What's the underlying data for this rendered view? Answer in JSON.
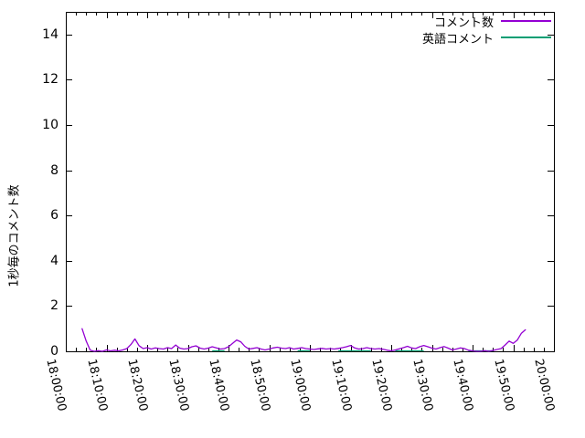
{
  "chart_data": {
    "type": "line",
    "title": "",
    "xlabel": "",
    "ylabel": "1秒毎のコメント数",
    "grid": false,
    "background": "#ffffff",
    "border_color": "#000000",
    "text_color": "#000000",
    "legend_position": "top-right-inside",
    "ylim": [
      0,
      15
    ],
    "xlim": [
      "18:00:00",
      "20:00:00"
    ],
    "y_ticks": [
      0,
      2,
      4,
      6,
      8,
      10,
      12,
      14
    ],
    "x_ticks": [
      "18:00:00",
      "18:10:00",
      "18:20:00",
      "18:30:00",
      "18:40:00",
      "18:50:00",
      "19:00:00",
      "19:10:00",
      "19:20:00",
      "19:30:00",
      "19:40:00",
      "19:50:00",
      "20:00:00"
    ],
    "x_minor_divisions": 4,
    "series": [
      {
        "name": "コメント数",
        "color": "#9400d3",
        "points": [
          [
            "18:04",
            1.0
          ],
          [
            "18:05",
            0.45
          ],
          [
            "18:06",
            0.05
          ],
          [
            "18:07",
            0.0
          ],
          [
            "18:08",
            0.03
          ],
          [
            "18:09",
            0.0
          ],
          [
            "18:10",
            0.06
          ],
          [
            "18:11",
            0.02
          ],
          [
            "18:12",
            0.05
          ],
          [
            "18:13",
            0.02
          ],
          [
            "18:14",
            0.06
          ],
          [
            "18:15",
            0.12
          ],
          [
            "18:16",
            0.3
          ],
          [
            "18:17",
            0.55
          ],
          [
            "18:18",
            0.25
          ],
          [
            "18:19",
            0.12
          ],
          [
            "18:20",
            0.16
          ],
          [
            "18:21",
            0.1
          ],
          [
            "18:22",
            0.15
          ],
          [
            "18:23",
            0.12
          ],
          [
            "18:24",
            0.1
          ],
          [
            "18:25",
            0.16
          ],
          [
            "18:26",
            0.12
          ],
          [
            "18:27",
            0.28
          ],
          [
            "18:28",
            0.14
          ],
          [
            "18:29",
            0.1
          ],
          [
            "18:30",
            0.12
          ],
          [
            "18:31",
            0.2
          ],
          [
            "18:32",
            0.24
          ],
          [
            "18:33",
            0.14
          ],
          [
            "18:34",
            0.1
          ],
          [
            "18:35",
            0.14
          ],
          [
            "18:36",
            0.2
          ],
          [
            "18:37",
            0.15
          ],
          [
            "18:38",
            0.1
          ],
          [
            "18:39",
            0.12
          ],
          [
            "18:40",
            0.2
          ],
          [
            "18:41",
            0.35
          ],
          [
            "18:42",
            0.5
          ],
          [
            "18:43",
            0.42
          ],
          [
            "18:44",
            0.22
          ],
          [
            "18:45",
            0.1
          ],
          [
            "18:46",
            0.13
          ],
          [
            "18:47",
            0.16
          ],
          [
            "18:48",
            0.1
          ],
          [
            "18:49",
            0.06
          ],
          [
            "18:50",
            0.1
          ],
          [
            "18:51",
            0.15
          ],
          [
            "18:52",
            0.18
          ],
          [
            "18:53",
            0.14
          ],
          [
            "18:54",
            0.12
          ],
          [
            "18:55",
            0.16
          ],
          [
            "18:56",
            0.1
          ],
          [
            "18:57",
            0.13
          ],
          [
            "18:58",
            0.16
          ],
          [
            "18:59",
            0.12
          ],
          [
            "19:00",
            0.1
          ],
          [
            "19:01",
            0.08
          ],
          [
            "19:02",
            0.11
          ],
          [
            "19:03",
            0.13
          ],
          [
            "19:04",
            0.1
          ],
          [
            "19:05",
            0.12
          ],
          [
            "19:06",
            0.1
          ],
          [
            "19:07",
            0.13
          ],
          [
            "19:08",
            0.16
          ],
          [
            "19:09",
            0.2
          ],
          [
            "19:10",
            0.26
          ],
          [
            "19:11",
            0.15
          ],
          [
            "19:12",
            0.1
          ],
          [
            "19:13",
            0.12
          ],
          [
            "19:14",
            0.16
          ],
          [
            "19:15",
            0.12
          ],
          [
            "19:16",
            0.1
          ],
          [
            "19:17",
            0.12
          ],
          [
            "19:18",
            0.09
          ],
          [
            "19:19",
            0.05
          ],
          [
            "19:20",
            0.02
          ],
          [
            "19:21",
            0.06
          ],
          [
            "19:22",
            0.11
          ],
          [
            "19:23",
            0.16
          ],
          [
            "19:24",
            0.22
          ],
          [
            "19:25",
            0.15
          ],
          [
            "19:26",
            0.12
          ],
          [
            "19:27",
            0.2
          ],
          [
            "19:28",
            0.26
          ],
          [
            "19:29",
            0.2
          ],
          [
            "19:30",
            0.14
          ],
          [
            "19:31",
            0.1
          ],
          [
            "19:32",
            0.16
          ],
          [
            "19:33",
            0.21
          ],
          [
            "19:34",
            0.14
          ],
          [
            "19:35",
            0.06
          ],
          [
            "19:36",
            0.1
          ],
          [
            "19:37",
            0.15
          ],
          [
            "19:38",
            0.12
          ],
          [
            "19:39",
            0.05
          ],
          [
            "19:40",
            0.02
          ],
          [
            "19:41",
            0.0
          ],
          [
            "19:42",
            0.0
          ],
          [
            "19:43",
            0.03
          ],
          [
            "19:44",
            0.0
          ],
          [
            "19:45",
            0.04
          ],
          [
            "19:46",
            0.08
          ],
          [
            "19:47",
            0.12
          ],
          [
            "19:48",
            0.28
          ],
          [
            "19:49",
            0.45
          ],
          [
            "19:50",
            0.35
          ],
          [
            "19:51",
            0.5
          ],
          [
            "19:52",
            0.8
          ],
          [
            "19:53",
            0.95
          ]
        ]
      },
      {
        "name": "英語コメント",
        "color": "#009e73",
        "value": 0,
        "segments": [
          [
            "18:36",
            "18:39"
          ],
          [
            "18:57",
            "19:00"
          ],
          [
            "19:07",
            "19:15"
          ],
          [
            "19:21",
            "19:28"
          ],
          [
            "19:39",
            "19:45"
          ]
        ]
      }
    ]
  }
}
